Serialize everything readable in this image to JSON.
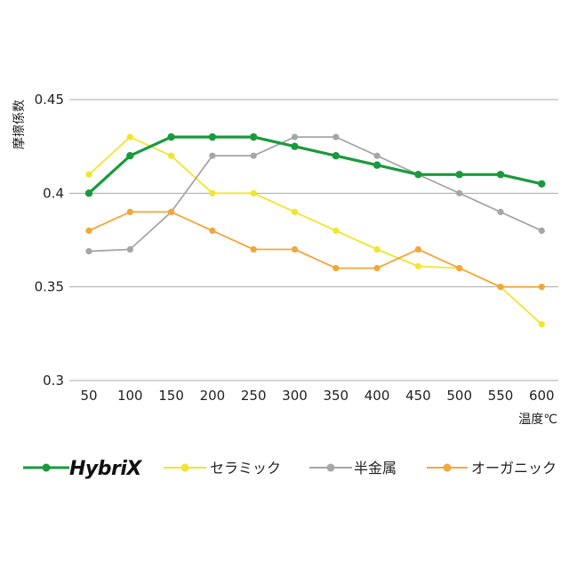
{
  "chart_data": {
    "type": "line",
    "title": "",
    "xlabel": "温度℃",
    "ylabel": "摩擦係数",
    "x": [
      50,
      100,
      150,
      200,
      250,
      300,
      350,
      400,
      450,
      500,
      550,
      600
    ],
    "x_tick_labels": [
      "50",
      "100",
      "150",
      "200",
      "250",
      "300",
      "350",
      "400",
      "450",
      "500",
      "550",
      "600"
    ],
    "ylim": [
      0.3,
      0.45
    ],
    "y_ticks": [
      0.3,
      0.35,
      0.4,
      0.45
    ],
    "y_tick_labels": [
      "0.3",
      "0.35",
      "0.4",
      "0.45"
    ],
    "grid": true,
    "legend_position": "bottom",
    "series": [
      {
        "name": "HybriX",
        "color": "#1a9a3c",
        "emphasis": true,
        "values": [
          0.4,
          0.42,
          0.43,
          0.43,
          0.43,
          0.425,
          0.42,
          0.415,
          0.41,
          0.41,
          0.41,
          0.405
        ]
      },
      {
        "name": "セラミック",
        "color": "#f2e52c",
        "emphasis": false,
        "values": [
          0.41,
          0.43,
          0.42,
          0.4,
          0.4,
          0.39,
          0.38,
          0.37,
          0.361,
          0.36,
          0.35,
          0.33
        ]
      },
      {
        "name": "半金属",
        "color": "#a6a6a6",
        "emphasis": false,
        "values": [
          0.369,
          0.37,
          0.39,
          0.42,
          0.42,
          0.43,
          0.43,
          0.42,
          0.41,
          0.4,
          0.39,
          0.38
        ]
      },
      {
        "name": "オーガニック",
        "color": "#f3a63b",
        "emphasis": false,
        "values": [
          0.38,
          0.39,
          0.39,
          0.38,
          0.37,
          0.37,
          0.36,
          0.36,
          0.37,
          0.36,
          0.35,
          0.35
        ]
      }
    ]
  }
}
